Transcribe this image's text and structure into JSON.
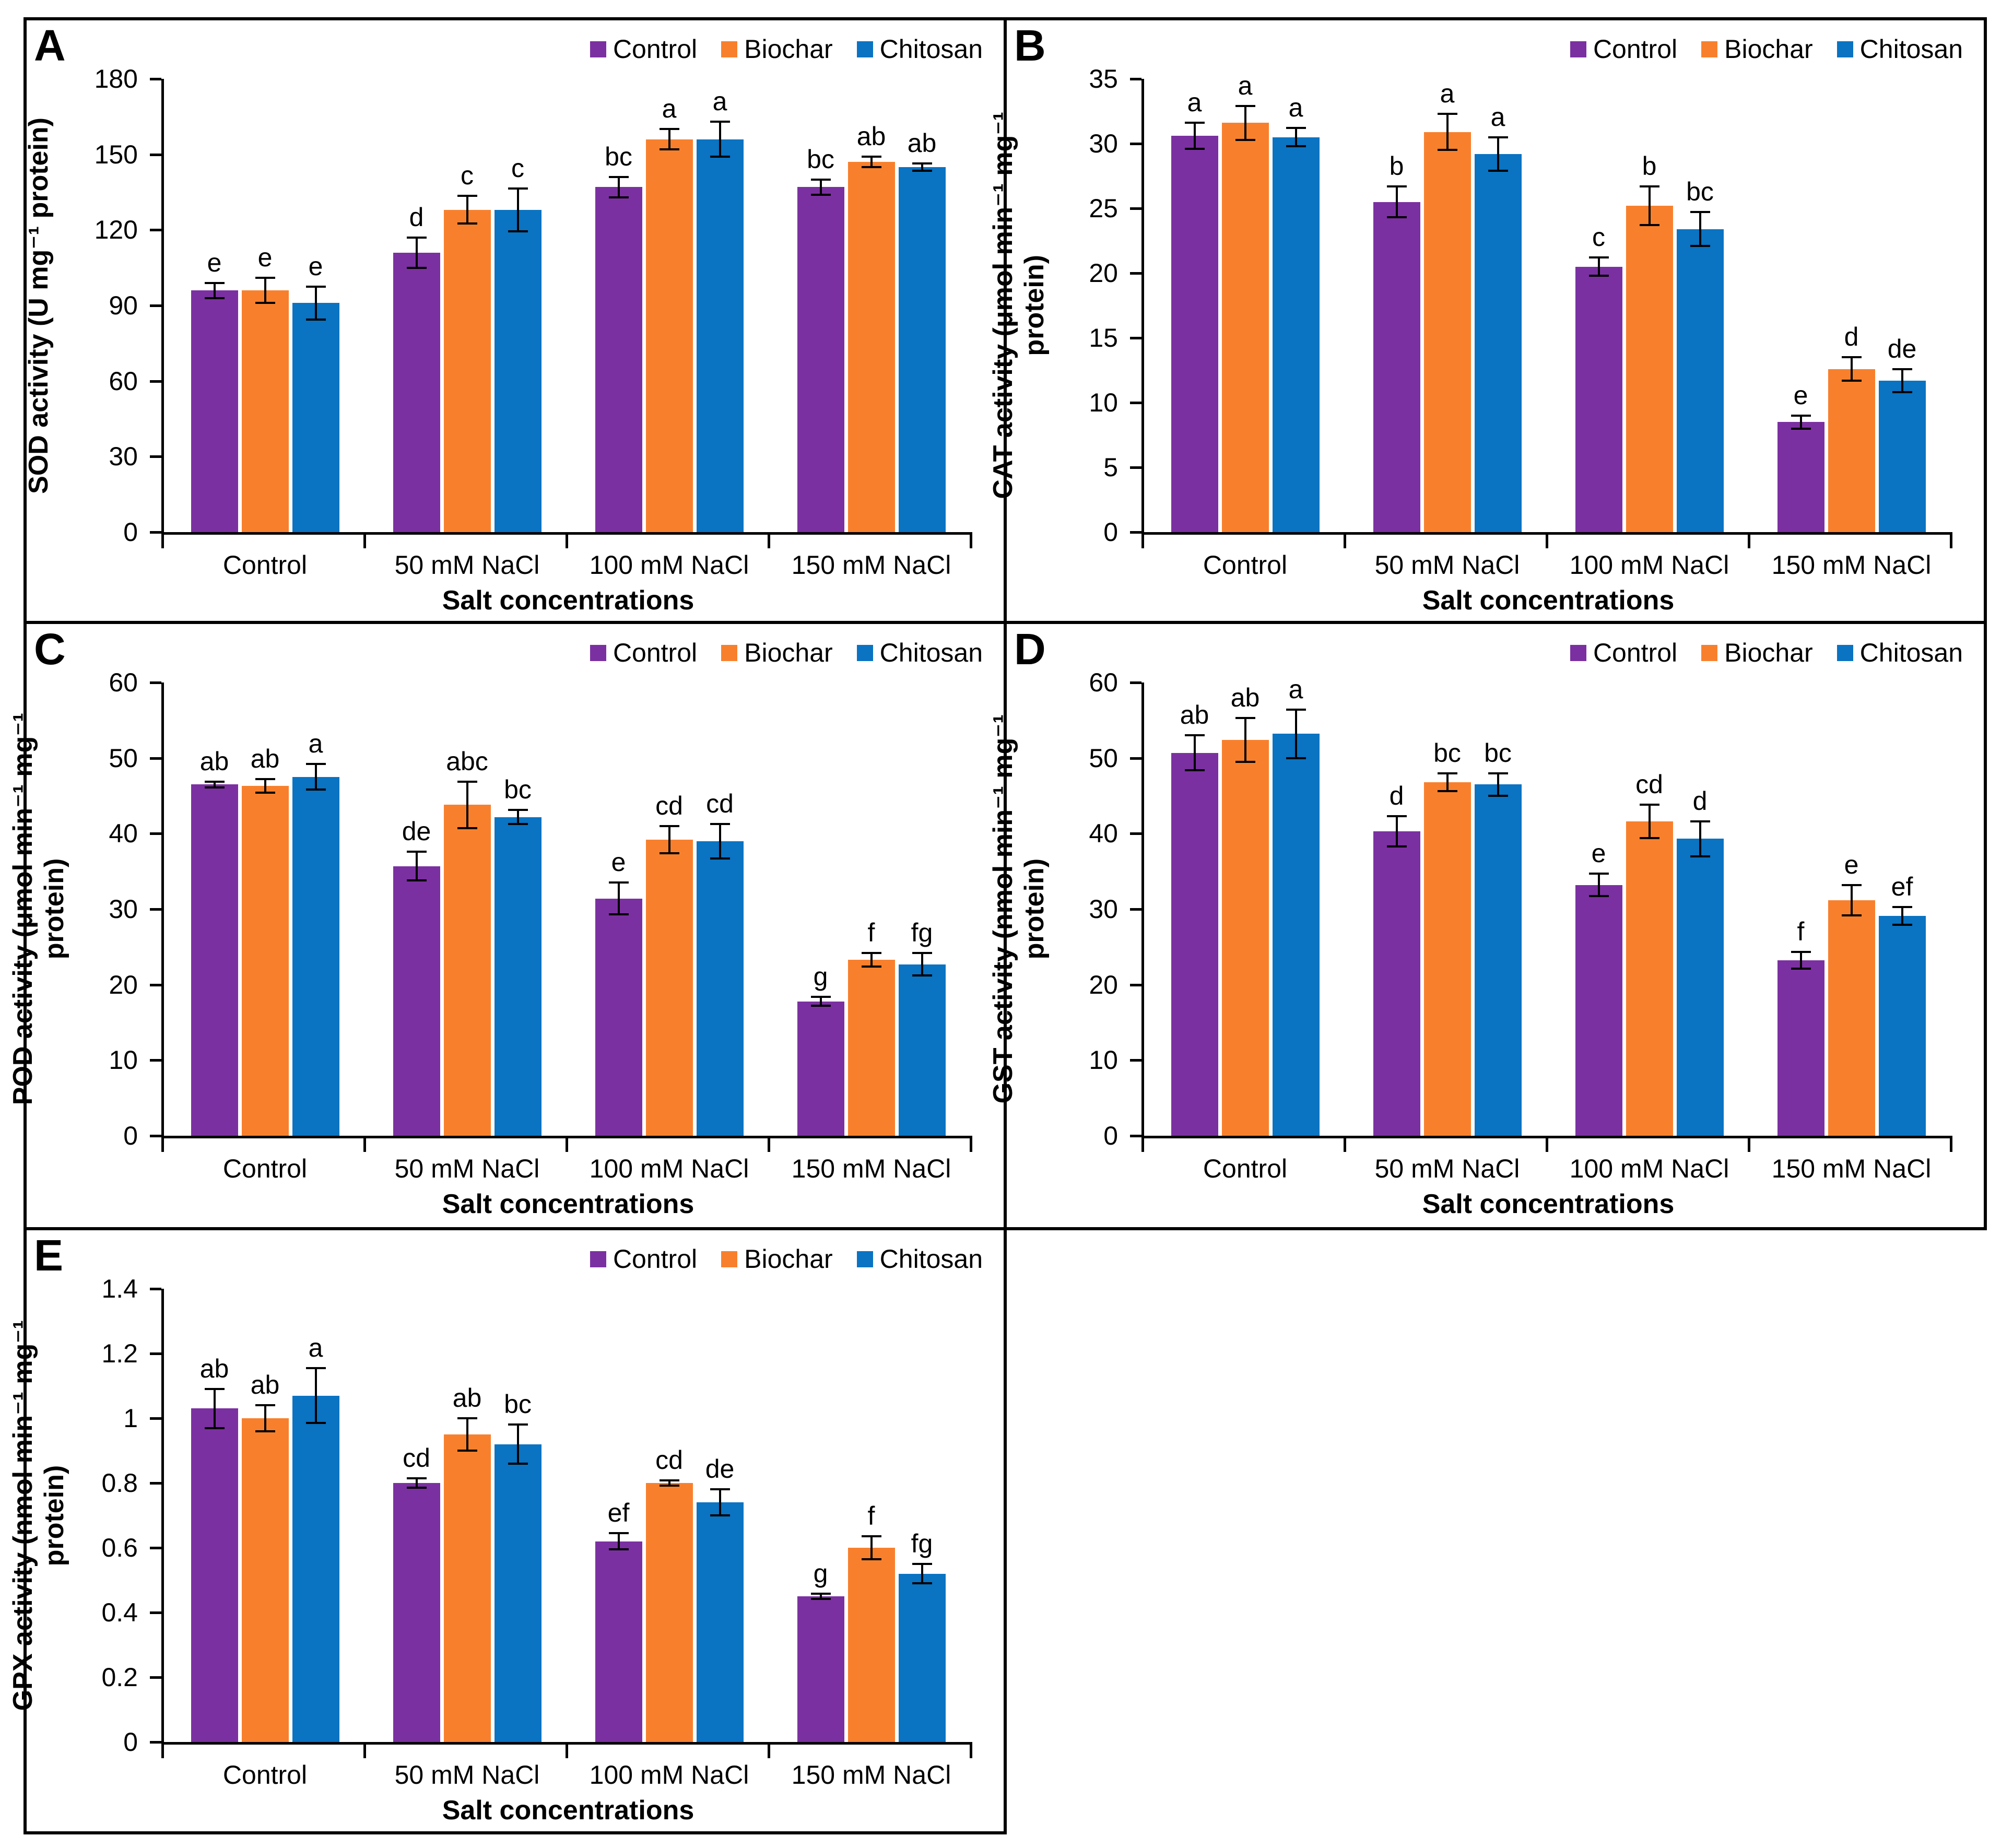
{
  "chart_data": [
    {
      "type": "bar",
      "panel_label": "A",
      "ylabel_lines": [
        "SOD activity (U mg⁻¹ protein)"
      ],
      "xlabel": "Salt concentrations",
      "categories": [
        "Control",
        "50 mM NaCl",
        "100 mM NaCl",
        "150 mM NaCl"
      ],
      "ylim": [
        0,
        180
      ],
      "y_tick_values": [
        0,
        30,
        60,
        90,
        120,
        150,
        180
      ],
      "y_tick_labels": [
        "0",
        "30",
        "60",
        "90",
        "120",
        "150",
        "180"
      ],
      "grid": false,
      "legend_position": "top-right",
      "series": [
        {
          "name": "Control",
          "color": "#7B30A1",
          "values": [
            96,
            111,
            137,
            137
          ],
          "errors": [
            3,
            6,
            4,
            3
          ],
          "sig_letters": [
            "e",
            "d",
            "bc",
            "bc"
          ]
        },
        {
          "name": "Biochar",
          "color": "#F8802D",
          "values": [
            96,
            128,
            156,
            147
          ],
          "errors": [
            5,
            5.5,
            4,
            2
          ],
          "sig_letters": [
            "e",
            "c",
            "a",
            "ab"
          ]
        },
        {
          "name": "Chitosan",
          "color": "#0A73C2",
          "values": [
            91,
            128,
            156,
            145
          ],
          "errors": [
            6.5,
            8.5,
            7,
            1.5
          ],
          "sig_letters": [
            "e",
            "c",
            "a",
            "ab"
          ]
        }
      ]
    },
    {
      "type": "bar",
      "panel_label": "B",
      "ylabel_lines": [
        "CAT activity (μmol min⁻¹ mg⁻¹",
        "protein)"
      ],
      "xlabel": "Salt concentrations",
      "categories": [
        "Control",
        "50 mM NaCl",
        "100 mM NaCl",
        "150 mM NaCl"
      ],
      "ylim": [
        0,
        35
      ],
      "y_tick_values": [
        0,
        5,
        10,
        15,
        20,
        25,
        30,
        35
      ],
      "y_tick_labels": [
        "0",
        "5",
        "10",
        "15",
        "20",
        "25",
        "30",
        "35"
      ],
      "grid": false,
      "legend_position": "top-right",
      "series": [
        {
          "name": "Control",
          "color": "#7B30A1",
          "values": [
            30.6,
            25.5,
            20.5,
            8.5
          ],
          "errors": [
            1.0,
            1.2,
            0.7,
            0.5
          ],
          "sig_letters": [
            "a",
            "b",
            "c",
            "e"
          ]
        },
        {
          "name": "Biochar",
          "color": "#F8802D",
          "values": [
            31.6,
            30.9,
            25.2,
            12.6
          ],
          "errors": [
            1.3,
            1.4,
            1.5,
            0.9
          ],
          "sig_letters": [
            "a",
            "a",
            "b",
            "d"
          ]
        },
        {
          "name": "Chitosan",
          "color": "#0A73C2",
          "values": [
            30.5,
            29.2,
            23.4,
            11.7
          ],
          "errors": [
            0.7,
            1.3,
            1.3,
            0.9
          ],
          "sig_letters": [
            "a",
            "a",
            "bc",
            "de"
          ]
        }
      ]
    },
    {
      "type": "bar",
      "panel_label": "C",
      "ylabel_lines": [
        "POD activity (μmol min⁻¹ mg⁻¹",
        "protein)"
      ],
      "xlabel": "Salt concentrations",
      "categories": [
        "Control",
        "50 mM NaCl",
        "100 mM NaCl",
        "150 mM NaCl"
      ],
      "ylim": [
        0,
        60
      ],
      "y_tick_values": [
        0,
        10,
        20,
        30,
        40,
        50,
        60
      ],
      "y_tick_labels": [
        "0",
        "10",
        "20",
        "30",
        "40",
        "50",
        "60"
      ],
      "grid": false,
      "legend_position": "top-right",
      "series": [
        {
          "name": "Control",
          "color": "#7B30A1",
          "values": [
            46.5,
            35.7,
            31.4,
            17.8
          ],
          "errors": [
            0.4,
            1.9,
            2.1,
            0.6
          ],
          "sig_letters": [
            "ab",
            "de",
            "e",
            "g"
          ]
        },
        {
          "name": "Biochar",
          "color": "#F8802D",
          "values": [
            46.3,
            43.8,
            39.2,
            23.3
          ],
          "errors": [
            0.9,
            3.1,
            1.8,
            0.9
          ],
          "sig_letters": [
            "ab",
            "abc",
            "cd",
            "f"
          ]
        },
        {
          "name": "Chitosan",
          "color": "#0A73C2",
          "values": [
            47.5,
            42.2,
            39.0,
            22.7
          ],
          "errors": [
            1.7,
            0.9,
            2.3,
            1.5
          ],
          "sig_letters": [
            "a",
            "bc",
            "cd",
            "fg"
          ]
        }
      ]
    },
    {
      "type": "bar",
      "panel_label": "D",
      "ylabel_lines": [
        "GST activity (nmol min⁻¹ mg⁻¹",
        "protein)"
      ],
      "xlabel": "Salt concentrations",
      "categories": [
        "Control",
        "50 mM NaCl",
        "100 mM NaCl",
        "150 mM NaCl"
      ],
      "ylim": [
        0,
        60
      ],
      "y_tick_values": [
        0,
        10,
        20,
        30,
        40,
        50,
        60
      ],
      "y_tick_labels": [
        "0",
        "10",
        "20",
        "30",
        "40",
        "50",
        "60"
      ],
      "grid": false,
      "legend_position": "top-right",
      "series": [
        {
          "name": "Control",
          "color": "#7B30A1",
          "values": [
            50.7,
            40.3,
            33.2,
            23.2
          ],
          "errors": [
            2.3,
            2.0,
            1.5,
            1.1
          ],
          "sig_letters": [
            "ab",
            "d",
            "e",
            "f"
          ]
        },
        {
          "name": "Biochar",
          "color": "#F8802D",
          "values": [
            52.4,
            46.8,
            41.6,
            31.2
          ],
          "errors": [
            2.9,
            1.2,
            2.2,
            2.0
          ],
          "sig_letters": [
            "ab",
            "bc",
            "cd",
            "e"
          ]
        },
        {
          "name": "Chitosan",
          "color": "#0A73C2",
          "values": [
            53.2,
            46.5,
            39.3,
            29.1
          ],
          "errors": [
            3.2,
            1.5,
            2.3,
            1.2
          ],
          "sig_letters": [
            "a",
            "bc",
            "d",
            "ef"
          ]
        }
      ]
    },
    {
      "type": "bar",
      "panel_label": "E",
      "ylabel_lines": [
        "GPX activity (nmol min⁻¹ mg⁻¹",
        "protein)"
      ],
      "xlabel": "Salt concentrations",
      "categories": [
        "Control",
        "50 mM NaCl",
        "100 mM NaCl",
        "150 mM NaCl"
      ],
      "ylim": [
        0,
        1.4
      ],
      "y_tick_values": [
        0,
        0.2,
        0.4,
        0.6,
        0.8,
        1,
        1.2,
        1.4
      ],
      "y_tick_labels": [
        "0",
        "0.2",
        "0.4",
        "0.6",
        "0.8",
        "1",
        "1.2",
        "1.4"
      ],
      "grid": false,
      "legend_position": "top-right",
      "series": [
        {
          "name": "Control",
          "color": "#7B30A1",
          "values": [
            1.03,
            0.8,
            0.62,
            0.45
          ],
          "errors": [
            0.06,
            0.015,
            0.025,
            0.008
          ],
          "sig_letters": [
            "ab",
            "cd",
            "ef",
            "g"
          ]
        },
        {
          "name": "Biochar",
          "color": "#F8802D",
          "values": [
            1.0,
            0.95,
            0.8,
            0.6
          ],
          "errors": [
            0.04,
            0.05,
            0.008,
            0.035
          ],
          "sig_letters": [
            "ab",
            "ab",
            "cd",
            "f"
          ]
        },
        {
          "name": "Chitosan",
          "color": "#0A73C2",
          "values": [
            1.07,
            0.92,
            0.74,
            0.52
          ],
          "errors": [
            0.085,
            0.06,
            0.04,
            0.03
          ],
          "sig_letters": [
            "a",
            "bc",
            "de",
            "fg"
          ]
        }
      ]
    }
  ]
}
